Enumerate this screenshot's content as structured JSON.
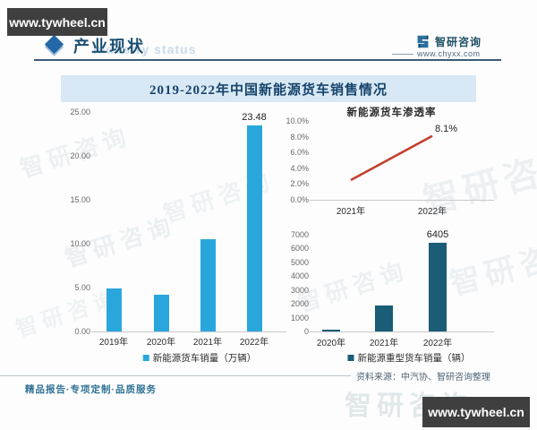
{
  "page": {
    "corner_site": "www.tywheel.cn",
    "section_title": "产业现状",
    "ghost_subtitle": "Industry status",
    "brand": {
      "name": "智研咨询",
      "url": "www.chyxx.com"
    },
    "banner_title": "2019-2022年中国新能源货车销售情况",
    "source_note": "资料来源：中汽协、智研咨询整理",
    "footer_left": "精品报告·专项定制·品质服务",
    "watermark_text": "智研咨询"
  },
  "colors": {
    "light_blue_bar": "#29a7dd",
    "dark_teal_bar": "#1b5c77",
    "red_line": "#c3402c",
    "banner_bg": "#d8e9f5",
    "navy_text": "#16436b"
  },
  "chart_data": [
    {
      "id": "new-energy-truck-sales",
      "type": "bar",
      "title": "",
      "categories": [
        "2019年",
        "2020年",
        "2021年",
        "2022年"
      ],
      "values": [
        4.9,
        4.2,
        10.5,
        23.48
      ],
      "labels": [
        "",
        "",
        "",
        "23.48"
      ],
      "legend": "新能源货车销量（万辆）",
      "ylim": [
        0,
        25
      ],
      "yticks": [
        "25.00",
        "20.00",
        "15.00",
        "10.00",
        "5.00",
        "0.00"
      ],
      "bar_color": "#29a7dd",
      "grid": false,
      "legend_position": "bottom"
    },
    {
      "id": "new-energy-truck-penetration",
      "type": "line",
      "title": "新能源货车渗透率",
      "categories": [
        "2021年",
        "2022年"
      ],
      "values": [
        2.5,
        8.1
      ],
      "labels": [
        "",
        "8.1%"
      ],
      "ylim": [
        0,
        10
      ],
      "yticks": [
        "10.0%",
        "8.0%",
        "6.0%",
        "4.0%",
        "2.0%",
        "0.0%"
      ],
      "line_color": "#c3402c",
      "grid": false
    },
    {
      "id": "new-energy-heavy-truck-sales",
      "type": "bar",
      "title": "",
      "categories": [
        "2020年",
        "2021年",
        "2022年"
      ],
      "values": [
        150,
        1850,
        6405
      ],
      "labels": [
        "",
        "",
        "6405"
      ],
      "legend": "新能源重型货车销量（辆）",
      "ylim": [
        0,
        7000
      ],
      "yticks": [
        "7000",
        "6000",
        "5000",
        "4000",
        "3000",
        "2000",
        "1000",
        "0"
      ],
      "bar_color": "#1b5c77",
      "grid": false,
      "legend_position": "bottom"
    }
  ]
}
